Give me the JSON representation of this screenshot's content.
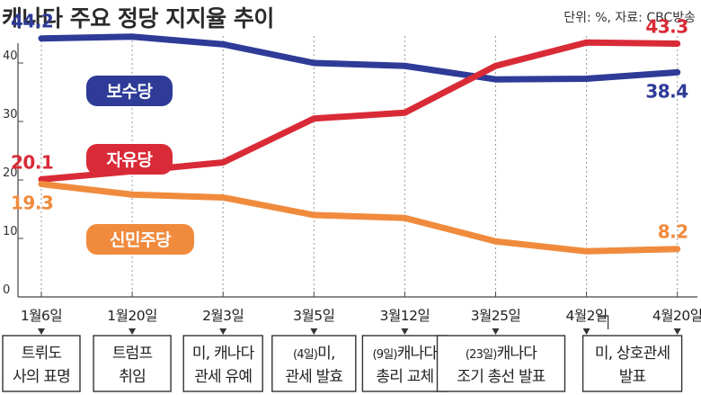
{
  "chart_data": {
    "type": "line",
    "title": "캐나다 주요 정당 지지율 추이",
    "source": "단위: %, 자료: CBC방송",
    "xlabel": "",
    "ylabel": "",
    "ylim": [
      0,
      50
    ],
    "yticks": [
      0,
      10,
      20,
      30,
      40
    ],
    "categories": [
      "1월6일",
      "1월20일",
      "2월3일",
      "3월5일",
      "3월12일",
      "3월25일",
      "4월2일",
      "4월20일"
    ],
    "series": [
      {
        "name": "보수당",
        "color": "#2e3b97",
        "values": [
          44.2,
          44.5,
          43.2,
          40,
          39.5,
          37.2,
          37.3,
          38.4
        ],
        "start_label": "44.2",
        "end_label": "38.4"
      },
      {
        "name": "자유당",
        "color": "#d92b37",
        "values": [
          20.1,
          21.5,
          23,
          30.5,
          31.5,
          39.5,
          43.5,
          43.3
        ],
        "start_label": "20.1",
        "end_label": "43.3"
      },
      {
        "name": "신민주당",
        "color": "#f08a3c",
        "values": [
          19.3,
          17.5,
          17,
          14,
          13.5,
          9.5,
          7.8,
          8.2
        ],
        "start_label": "19.3",
        "end_label": "8.2"
      }
    ],
    "events": [
      {
        "lines": [
          "트뤼도",
          "사의 표명"
        ],
        "note": ""
      },
      {
        "lines": [
          "트럼프",
          "취임"
        ],
        "note": ""
      },
      {
        "lines": [
          "미, 캐나다",
          "관세 유예"
        ],
        "note": ""
      },
      {
        "lines": [
          "미,",
          "관세 발효"
        ],
        "note": "(4일)"
      },
      {
        "lines": [
          "캐나다",
          "총리 교체"
        ],
        "note": "(9일)"
      },
      {
        "lines": [
          "캐나다",
          "조기 총선 발표"
        ],
        "note": "(23일)"
      },
      {
        "lines": [
          "미, 상호관세",
          "발표"
        ],
        "note": ""
      }
    ]
  }
}
